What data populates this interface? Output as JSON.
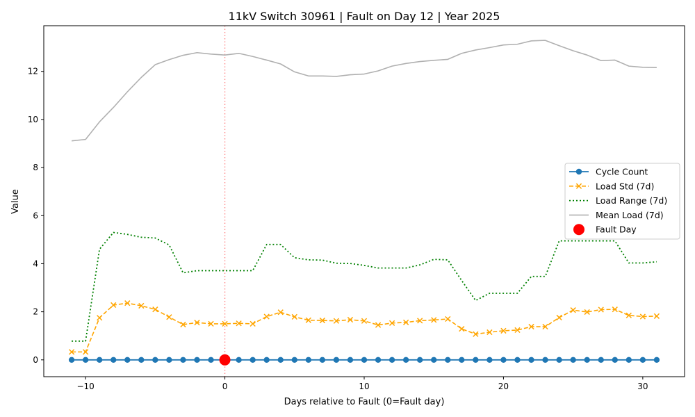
{
  "chart_data": {
    "type": "line",
    "title": "11kV Switch 30961 | Fault on Day 12 | Year 2025",
    "xlabel": "Days relative to Fault (0=Fault day)",
    "ylabel": "Value",
    "xlim": [
      -13,
      33
    ],
    "ylim": [
      -0.7,
      13.9
    ],
    "xticks": [
      -10,
      0,
      10,
      20,
      30
    ],
    "xtick_labels": [
      "−10",
      "0",
      "10",
      "20",
      "30"
    ],
    "yticks": [
      0,
      2,
      4,
      6,
      8,
      10,
      12
    ],
    "ytick_labels": [
      "0",
      "2",
      "4",
      "6",
      "8",
      "10",
      "12"
    ],
    "grid": false,
    "legend_position": "center-right",
    "fault_line_x": 0,
    "x": [
      -11,
      -10,
      -9,
      -8,
      -7,
      -6,
      -5,
      -4,
      -3,
      -2,
      -1,
      0,
      1,
      2,
      3,
      4,
      5,
      6,
      7,
      8,
      9,
      10,
      11,
      12,
      13,
      14,
      15,
      16,
      17,
      18,
      19,
      20,
      21,
      22,
      23,
      24,
      25,
      26,
      27,
      28,
      29,
      30,
      31
    ],
    "series": [
      {
        "name": "Cycle Count",
        "color": "#1f77b4",
        "style": "solid-circle",
        "values": [
          0,
          0,
          0,
          0,
          0,
          0,
          0,
          0,
          0,
          0,
          0,
          0,
          0,
          0,
          0,
          0,
          0,
          0,
          0,
          0,
          0,
          0,
          0,
          0,
          0,
          0,
          0,
          0,
          0,
          0,
          0,
          0,
          0,
          0,
          0,
          0,
          0,
          0,
          0,
          0,
          0,
          0,
          0
        ]
      },
      {
        "name": "Load Std (7d)",
        "color": "#ffa500",
        "style": "dashed-x",
        "values": [
          0.33,
          0.33,
          1.75,
          2.28,
          2.36,
          2.25,
          2.1,
          1.78,
          1.47,
          1.55,
          1.5,
          1.5,
          1.52,
          1.5,
          1.8,
          1.98,
          1.79,
          1.65,
          1.64,
          1.62,
          1.67,
          1.62,
          1.45,
          1.53,
          1.56,
          1.63,
          1.66,
          1.7,
          1.29,
          1.07,
          1.15,
          1.21,
          1.24,
          1.38,
          1.38,
          1.76,
          2.07,
          1.99,
          2.09,
          2.1,
          1.85,
          1.8,
          1.82
        ]
      },
      {
        "name": "Load Range (7d)",
        "color": "#008000",
        "style": "dotted",
        "values": [
          0.78,
          0.78,
          4.6,
          5.3,
          5.22,
          5.1,
          5.07,
          4.78,
          3.62,
          3.71,
          3.71,
          3.71,
          3.71,
          3.71,
          4.8,
          4.8,
          4.25,
          4.16,
          4.15,
          4.02,
          4.01,
          3.93,
          3.82,
          3.82,
          3.82,
          3.95,
          4.18,
          4.16,
          3.3,
          2.47,
          2.77,
          2.77,
          2.77,
          3.47,
          3.47,
          4.95,
          4.95,
          4.95,
          4.95,
          4.95,
          4.03,
          4.03,
          4.08
        ]
      },
      {
        "name": "Mean Load (7d)",
        "color": "#b0b0b0",
        "style": "solid",
        "values": [
          9.11,
          9.17,
          9.9,
          10.5,
          11.15,
          11.75,
          12.28,
          12.49,
          12.67,
          12.78,
          12.72,
          12.68,
          12.75,
          12.62,
          12.47,
          12.31,
          11.98,
          11.81,
          11.81,
          11.79,
          11.86,
          11.89,
          12.02,
          12.22,
          12.33,
          12.41,
          12.46,
          12.5,
          12.75,
          12.89,
          12.99,
          13.1,
          13.13,
          13.27,
          13.29,
          13.07,
          12.86,
          12.68,
          12.45,
          12.47,
          12.22,
          12.17,
          12.16
        ]
      }
    ],
    "fault_point": {
      "name": "Fault Day",
      "x": 0,
      "y": 0,
      "color": "#ff0000"
    }
  }
}
